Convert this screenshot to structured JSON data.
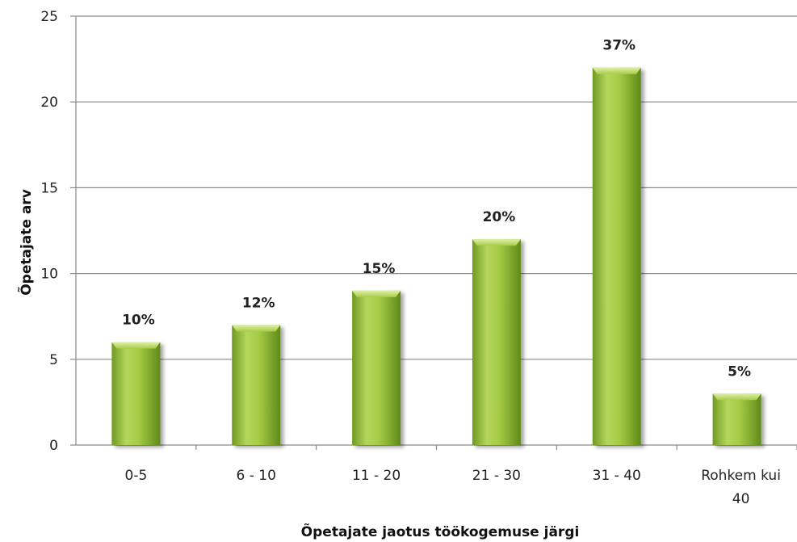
{
  "chart_data": {
    "type": "bar",
    "categories": [
      "0-5",
      "6 - 10",
      "11 - 20",
      "21 - 30",
      "31 - 40",
      "Rohkem kui 40"
    ],
    "category_lines": [
      [
        "0-5"
      ],
      [
        "6 - 10"
      ],
      [
        "11 - 20"
      ],
      [
        "21 - 30"
      ],
      [
        "31 - 40"
      ],
      [
        "Rohkem kui",
        "40"
      ]
    ],
    "values": [
      6,
      7,
      9,
      12,
      22,
      3
    ],
    "data_labels": [
      "10%",
      "12%",
      "15%",
      "20%",
      "37%",
      "5%"
    ],
    "title": "",
    "xlabel": "Õpetajate jaotus töökogemuse järgi",
    "ylabel": "Õpetajate arv",
    "ylim": [
      0,
      25
    ],
    "yticks": [
      0,
      5,
      10,
      15,
      20,
      25
    ],
    "grid": true,
    "legend": "none",
    "colors": {
      "bar_light": "#c6e07a",
      "bar_mid": "#9bc23c",
      "bar_dark": "#5f8a1a",
      "grid": "#8a8a8a",
      "axis": "#8a8a8a"
    }
  }
}
